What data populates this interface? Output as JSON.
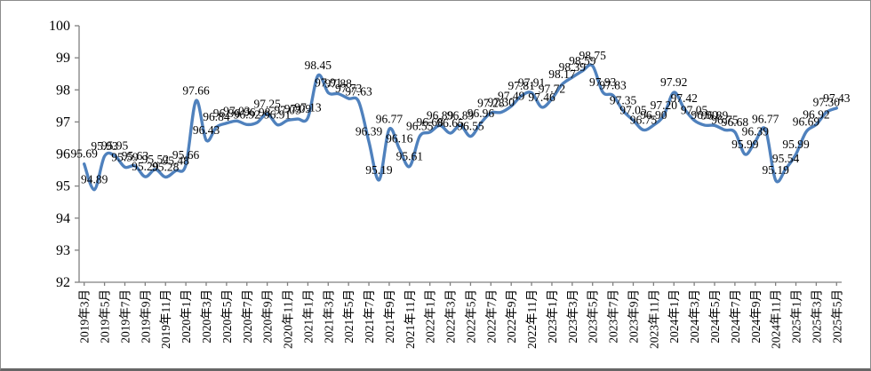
{
  "chart_data": {
    "type": "line",
    "title": "",
    "xlabel": "",
    "ylabel": "",
    "ylim": [
      92,
      100
    ],
    "y_ticks": [
      100,
      99,
      98,
      97,
      96,
      95,
      94,
      93,
      92
    ],
    "grid": false,
    "legend": "none",
    "smooth": true,
    "show_point_labels": true,
    "label_decimals": 2,
    "series_color": "#4F81BD",
    "axis_color": "#808080",
    "label_color": "#000000",
    "x_tick_every": 2,
    "x_tick_labels": [
      "2019年3月",
      "2019年5月",
      "2019年7月",
      "2019年9月",
      "2019年11月",
      "2020年1月",
      "2020年3月",
      "2020年5月",
      "2020年7月",
      "2020年9月",
      "2020年11月",
      "2021年1月",
      "2021年3月",
      "2021年5月",
      "2021年7月",
      "2021年9月",
      "2021年11月",
      "2022年1月",
      "2022年3月",
      "2022年5月",
      "2022年7月",
      "2022年9月",
      "2022年11月",
      "2023年1月",
      "2023年3月",
      "2023年5月",
      "2023年7月",
      "2023年9月",
      "2023年11月",
      "2024年1月",
      "2024年3月",
      "2024年5月",
      "2024年7月",
      "2024年9月",
      "2024年11月",
      "2025年1月",
      "2025年3月",
      "2025年5月"
    ],
    "x_start_label": "2019年3月",
    "x_end_label": "2025年5月",
    "values": [
      95.69,
      94.89,
      95.93,
      95.95,
      95.59,
      95.63,
      95.29,
      95.52,
      95.28,
      95.48,
      95.66,
      97.66,
      96.43,
      96.84,
      96.96,
      97.03,
      96.92,
      96.98,
      97.25,
      96.91,
      97.05,
      97.09,
      97.13,
      98.45,
      97.91,
      97.88,
      97.73,
      97.63,
      96.39,
      95.19,
      96.77,
      96.16,
      95.61,
      96.55,
      96.68,
      96.89,
      96.65,
      96.89,
      96.55,
      96.96,
      97.28,
      97.3,
      97.49,
      97.81,
      97.91,
      97.46,
      97.72,
      98.17,
      98.39,
      98.59,
      98.75,
      97.93,
      97.83,
      97.35,
      97.05,
      96.75,
      96.9,
      97.2,
      97.92,
      97.42,
      97.05,
      96.9,
      96.89,
      96.75,
      96.68,
      95.99,
      96.39,
      96.77,
      95.19,
      95.54,
      95.99,
      96.69,
      96.92,
      97.3,
      97.43
    ],
    "annotated_peaks": [
      "97.66",
      "98.45",
      "98.75",
      "97.92"
    ],
    "annotated_lows": [
      "94.89",
      "95.19",
      "95.54"
    ]
  }
}
